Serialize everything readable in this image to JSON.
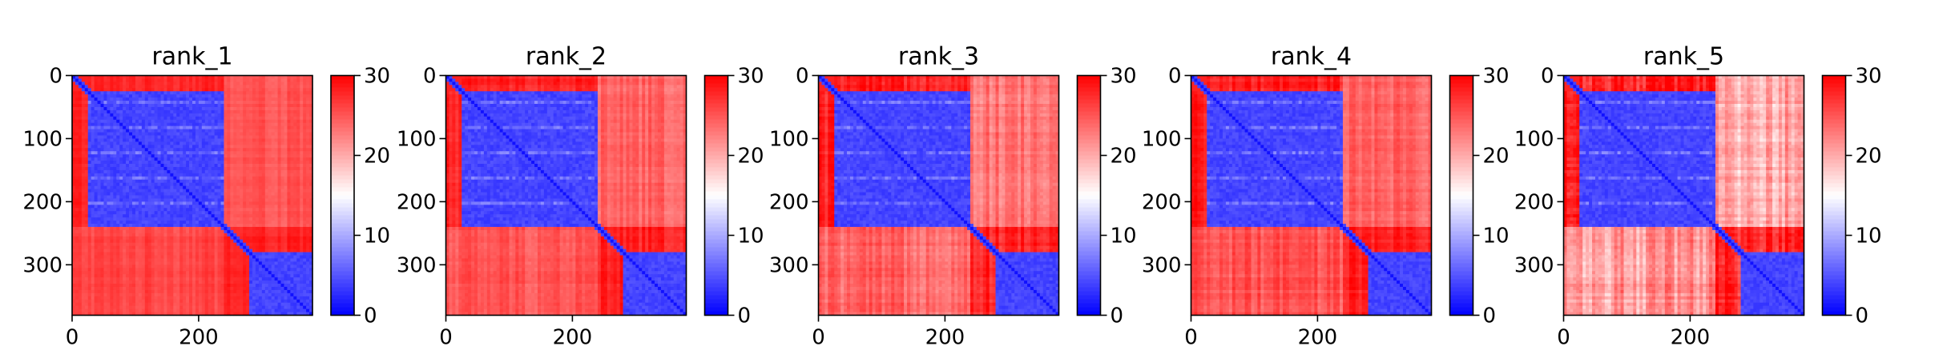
{
  "chart_data": [
    {
      "type": "heatmap",
      "title": "rank_1",
      "xlabel": "",
      "ylabel": "",
      "xlim": [
        0,
        380
      ],
      "ylim": [
        380,
        0
      ],
      "x_ticks": [
        0,
        200
      ],
      "y_ticks": [
        0,
        100,
        200,
        300
      ],
      "colorbar": {
        "ticks": [
          0,
          10,
          20,
          30
        ],
        "range": [
          0,
          30
        ],
        "colormap": "bwr"
      },
      "domains": [
        {
          "name": "",
          "start": 25,
          "end": 240,
          "value": 3
        },
        {
          "name": "",
          "start": 280,
          "end": 380,
          "value": 3
        }
      ],
      "off_domain_value": 28,
      "upper_right_value": 25,
      "lower_left_value": 26,
      "texture": 0.1
    },
    {
      "type": "heatmap",
      "title": "rank_2",
      "xlabel": "",
      "ylabel": "",
      "xlim": [
        0,
        380
      ],
      "ylim": [
        380,
        0
      ],
      "x_ticks": [
        0,
        200
      ],
      "y_ticks": [
        0,
        100,
        200,
        300
      ],
      "colorbar": {
        "ticks": [
          0,
          10,
          20,
          30
        ],
        "range": [
          0,
          30
        ],
        "colormap": "bwr"
      },
      "domains": [
        {
          "name": "",
          "start": 25,
          "end": 240,
          "value": 3
        },
        {
          "name": "",
          "start": 280,
          "end": 380,
          "value": 3
        }
      ],
      "off_domain_value": 28,
      "upper_right_value": 24,
      "lower_left_value": 25,
      "texture": 0.14
    },
    {
      "type": "heatmap",
      "title": "rank_3",
      "xlabel": "",
      "ylabel": "",
      "xlim": [
        0,
        380
      ],
      "ylim": [
        380,
        0
      ],
      "x_ticks": [
        0,
        200
      ],
      "y_ticks": [
        0,
        100,
        200,
        300
      ],
      "colorbar": {
        "ticks": [
          0,
          10,
          20,
          30
        ],
        "range": [
          0,
          30
        ],
        "colormap": "bwr"
      },
      "domains": [
        {
          "name": "",
          "start": 25,
          "end": 240,
          "value": 3
        },
        {
          "name": "",
          "start": 280,
          "end": 380,
          "value": 3
        }
      ],
      "off_domain_value": 28,
      "upper_right_value": 23,
      "lower_left_value": 24,
      "texture": 0.18
    },
    {
      "type": "heatmap",
      "title": "rank_4",
      "xlabel": "",
      "ylabel": "",
      "xlim": [
        0,
        380
      ],
      "ylim": [
        380,
        0
      ],
      "x_ticks": [
        0,
        200
      ],
      "y_ticks": [
        0,
        100,
        200,
        300
      ],
      "colorbar": {
        "ticks": [
          0,
          10,
          20,
          30
        ],
        "range": [
          0,
          30
        ],
        "colormap": "bwr"
      },
      "domains": [
        {
          "name": "",
          "start": 25,
          "end": 240,
          "value": 3
        },
        {
          "name": "",
          "start": 280,
          "end": 380,
          "value": 3
        }
      ],
      "off_domain_value": 28,
      "upper_right_value": 24,
      "lower_left_value": 25,
      "texture": 0.16
    },
    {
      "type": "heatmap",
      "title": "rank_5",
      "xlabel": "",
      "ylabel": "",
      "xlim": [
        0,
        380
      ],
      "ylim": [
        380,
        0
      ],
      "x_ticks": [
        0,
        200
      ],
      "y_ticks": [
        0,
        100,
        200,
        300
      ],
      "colorbar": {
        "ticks": [
          0,
          10,
          20,
          30
        ],
        "range": [
          0,
          30
        ],
        "colormap": "bwr"
      },
      "domains": [
        {
          "name": "",
          "start": 25,
          "end": 240,
          "value": 3
        },
        {
          "name": "",
          "start": 280,
          "end": 380,
          "value": 3
        }
      ],
      "off_domain_value": 28,
      "upper_right_value": 20,
      "lower_left_value": 21,
      "texture": 0.3
    }
  ],
  "colors": {
    "low": "#0000ff",
    "mid": "#ffffff",
    "high": "#ff0000"
  }
}
